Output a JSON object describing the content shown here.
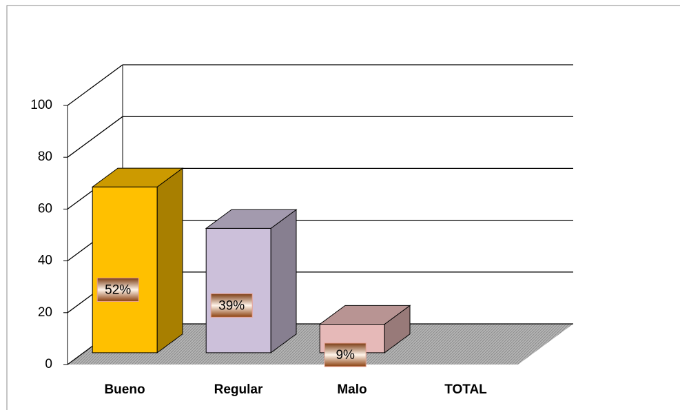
{
  "chart_data": {
    "type": "bar3d",
    "categories": [
      "Bueno",
      "Regular",
      "Malo",
      "TOTAL"
    ],
    "values": [
      64,
      48,
      11,
      null
    ],
    "percent_labels": [
      "52%",
      "39%",
      "9%",
      null
    ],
    "colors": [
      "#FFC000",
      "#CCC0DA",
      "#E6B9B8",
      null
    ],
    "ylim": [
      0,
      100
    ],
    "yticks": [
      0,
      20,
      40,
      60,
      80,
      100
    ],
    "grid": true
  }
}
